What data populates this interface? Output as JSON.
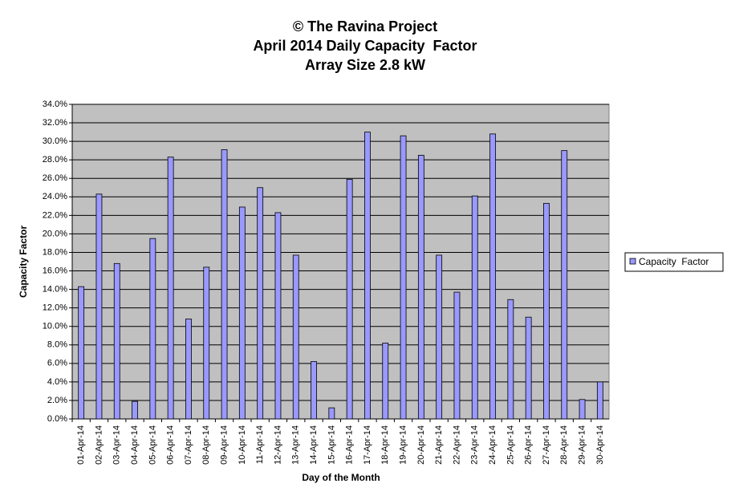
{
  "chart_data": {
    "type": "bar",
    "title": [
      "© The Ravina Project",
      "April 2014 Daily Capacity  Factor",
      "Array Size 2.8 kW"
    ],
    "x_label": "Day of the Month",
    "y_label": "Capacity Factor",
    "categories": [
      "01-Apr-14",
      "02-Apr-14",
      "03-Apr-14",
      "04-Apr-14",
      "05-Apr-14",
      "06-Apr-14",
      "07-Apr-14",
      "08-Apr-14",
      "09-Apr-14",
      "10-Apr-14",
      "11-Apr-14",
      "12-Apr-14",
      "13-Apr-14",
      "14-Apr-14",
      "15-Apr-14",
      "16-Apr-14",
      "17-Apr-14",
      "18-Apr-14",
      "19-Apr-14",
      "20-Apr-14",
      "21-Apr-14",
      "22-Apr-14",
      "23-Apr-14",
      "24-Apr-14",
      "25-Apr-14",
      "26-Apr-14",
      "27-Apr-14",
      "28-Apr-14",
      "29-Apr-14",
      "30-Apr-14"
    ],
    "series": [
      {
        "name": "Capacity  Factor",
        "color": "#9999ff",
        "values": [
          14.3,
          24.3,
          16.8,
          1.9,
          19.5,
          28.3,
          10.8,
          16.4,
          29.1,
          22.9,
          25.0,
          22.3,
          17.7,
          6.2,
          1.2,
          25.9,
          31.0,
          8.2,
          30.6,
          28.5,
          17.7,
          13.7,
          24.1,
          30.8,
          12.9,
          11.0,
          23.3,
          29.0,
          2.1,
          4.0
        ]
      }
    ],
    "ylim": [
      0,
      34
    ],
    "yticks": [
      {
        "value": 0,
        "label": "0.0%"
      },
      {
        "value": 2,
        "label": "2.0%"
      },
      {
        "value": 4,
        "label": "4.0%"
      },
      {
        "value": 6,
        "label": "6.0%"
      },
      {
        "value": 8,
        "label": "8.0%"
      },
      {
        "value": 10,
        "label": "10.0%"
      },
      {
        "value": 12,
        "label": "12.0%"
      },
      {
        "value": 14,
        "label": "14.0%"
      },
      {
        "value": 16,
        "label": "16.0%"
      },
      {
        "value": 18,
        "label": "18.0%"
      },
      {
        "value": 20,
        "label": "20.0%"
      },
      {
        "value": 22,
        "label": "22.0%"
      },
      {
        "value": 24,
        "label": "24.0%"
      },
      {
        "value": 26,
        "label": "26.0%"
      },
      {
        "value": 28,
        "label": "28.0%"
      },
      {
        "value": 30,
        "label": "30.0%"
      },
      {
        "value": 32,
        "label": "32.0%"
      },
      {
        "value": 34,
        "label": "34.0%"
      }
    ],
    "grid": true,
    "legend": "right",
    "plot_background": "#c0c0c0"
  }
}
